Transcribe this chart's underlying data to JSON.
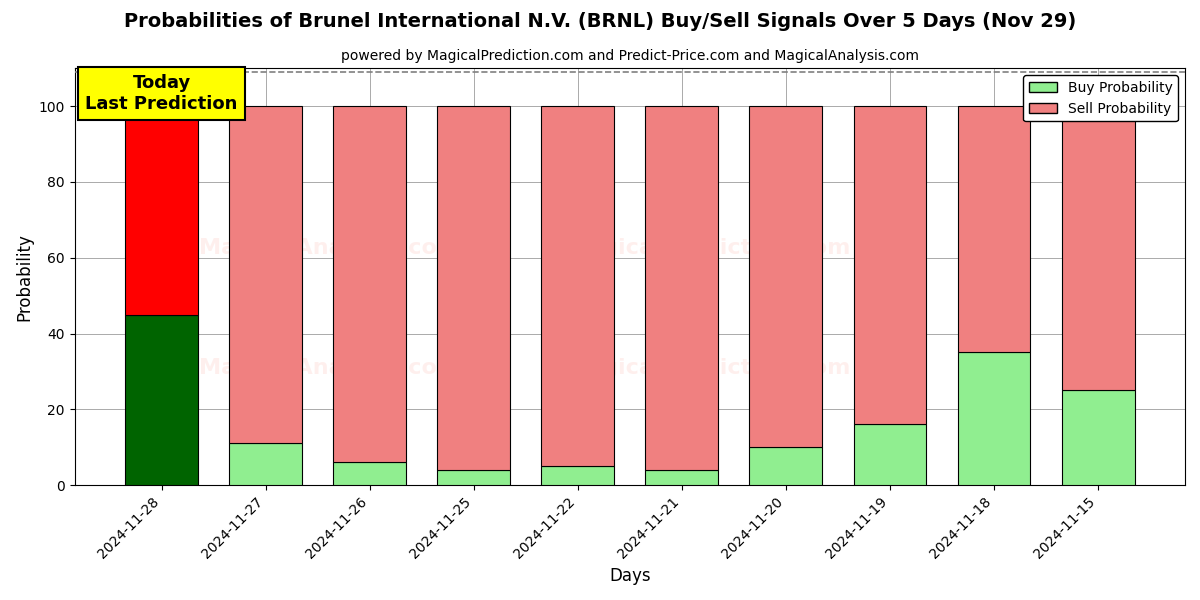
{
  "title": "Probabilities of Brunel International N.V. (BRNL) Buy/Sell Signals Over 5 Days (Nov 29)",
  "subtitle": "powered by MagicalPrediction.com and Predict-Price.com and MagicalAnalysis.com",
  "xlabel": "Days",
  "ylabel": "Probability",
  "days": [
    "2024-11-28",
    "2024-11-27",
    "2024-11-26",
    "2024-11-25",
    "2024-11-22",
    "2024-11-21",
    "2024-11-20",
    "2024-11-19",
    "2024-11-18",
    "2024-11-15"
  ],
  "buy_prob": [
    45,
    11,
    6,
    4,
    5,
    4,
    10,
    16,
    35,
    25
  ],
  "sell_prob": [
    55,
    89,
    94,
    96,
    95,
    96,
    90,
    84,
    65,
    75
  ],
  "buy_color_normal": "#90EE90",
  "buy_color_special": "#006400",
  "sell_color_normal": "#F08080",
  "sell_color_special": "#FF0000",
  "bar_edgecolor": "black",
  "ylim": [
    0,
    110
  ],
  "yticks": [
    0,
    20,
    40,
    60,
    80,
    100
  ],
  "dashed_line_y": 109,
  "annotation_text": "Today\nLast Prediction",
  "annotation_bgcolor": "yellow",
  "watermark_alpha": 0.12,
  "grid_color": "#888888",
  "legend_buy_color": "#90EE90",
  "legend_sell_color": "#F08080",
  "figsize": [
    12,
    6
  ],
  "dpi": 100
}
